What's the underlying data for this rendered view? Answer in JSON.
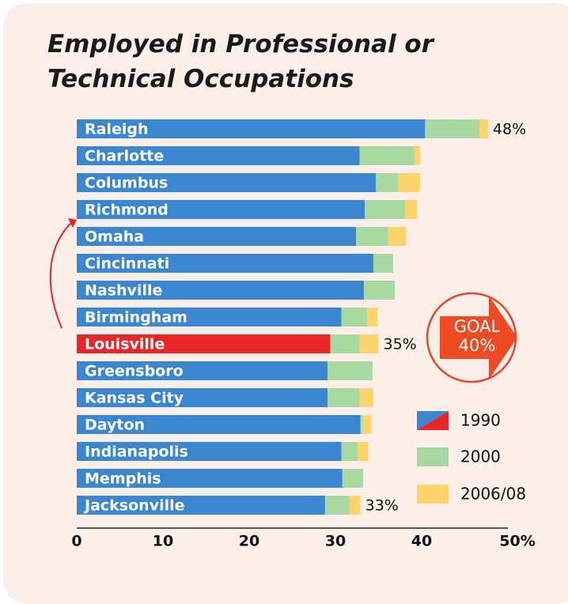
{
  "chart_data": {
    "type": "stacked-bar-horizontal",
    "title": "Employed in Professional or Technical Occupations",
    "categories": [
      "Raleigh",
      "Charlotte",
      "Columbus",
      "Richmond",
      "Omaha",
      "Cincinnati",
      "Nashville",
      "Birmingham",
      "Louisville",
      "Greensboro",
      "Kansas City",
      "Dayton",
      "Indianapolis",
      "Memphis",
      "Jacksonville"
    ],
    "series": [
      {
        "name": "1990",
        "color": "#3a86cf",
        "values": [
          40.4,
          32.8,
          34.7,
          33.4,
          32.4,
          34.4,
          33.3,
          30.7,
          29.4,
          29.1,
          29.1,
          32.9,
          30.7,
          30.8,
          28.8
        ]
      },
      {
        "name": "2000",
        "color": "#a9d9a0",
        "values": [
          6.3,
          6.4,
          2.6,
          4.7,
          3.7,
          2.3,
          3.6,
          3.0,
          3.4,
          5.2,
          3.7,
          0.3,
          1.9,
          2.4,
          2.8
        ]
      },
      {
        "name": "2006/08",
        "color": "#ffd36b",
        "values": [
          1.0,
          0.6,
          2.5,
          1.4,
          2.1,
          0,
          0,
          1.2,
          2.2,
          0,
          1.6,
          1.0,
          1.2,
          0,
          1.3
        ]
      }
    ],
    "highlight": {
      "category": "Louisville",
      "color": "#e8262a"
    },
    "annotations": [
      {
        "category": "Raleigh",
        "text": "48%"
      },
      {
        "category": "Louisville",
        "text": "35%"
      },
      {
        "category": "Jacksonville",
        "text": "33%"
      }
    ],
    "goal": [
      "GOAL",
      "40%"
    ],
    "xlim": [
      0,
      50
    ],
    "xticks": [
      0,
      10,
      20,
      30,
      40,
      {
        "value": 50,
        "label": "50%"
      }
    ],
    "legend": "right"
  }
}
